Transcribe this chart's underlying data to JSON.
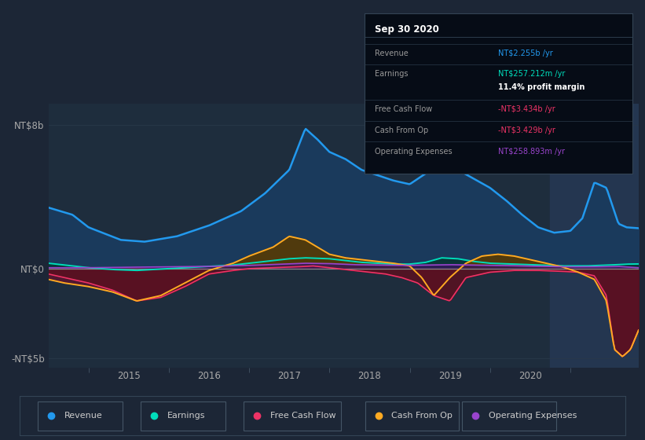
{
  "background_color": "#1c2636",
  "plot_bg_color": "#1e2d3d",
  "highlight_bg": "#243650",
  "colors": {
    "revenue_line": "#2299ee",
    "revenue_fill": "#1a3a5c",
    "earnings_line": "#00ddbb",
    "earnings_fill": "#0a3535",
    "free_cash_line": "#ee3366",
    "free_cash_fill": "#5a1020",
    "cash_from_op_line": "#ffaa22",
    "cash_from_op_fill_pos": "#5a3a00",
    "cash_from_op_fill_neg": "#5a1530",
    "op_exp_line": "#9944cc",
    "op_exp_fill": "#3a1560",
    "zero_line": "#888888",
    "grid_line": "#2a3a4a"
  },
  "legend": [
    {
      "label": "Revenue",
      "color": "#2299ee"
    },
    {
      "label": "Earnings",
      "color": "#00ddbb"
    },
    {
      "label": "Free Cash Flow",
      "color": "#ee3366"
    },
    {
      "label": "Cash From Op",
      "color": "#ffaa22"
    },
    {
      "label": "Operating Expenses",
      "color": "#9944cc"
    }
  ],
  "info_box": {
    "title": "Sep 30 2020",
    "rows": [
      {
        "label": "Revenue",
        "value": "NT$2.255b /yr",
        "color": "#2299ee"
      },
      {
        "label": "Earnings",
        "value": "NT$257.212m /yr",
        "color": "#00ddbb"
      },
      {
        "label": "",
        "value": "11.4% profit margin",
        "color": "#ffffff"
      },
      {
        "label": "Free Cash Flow",
        "value": "-NT$3.434b /yr",
        "color": "#ee3366"
      },
      {
        "label": "Cash From Op",
        "value": "-NT$3.429b /yr",
        "color": "#ee3366"
      },
      {
        "label": "Operating Expenses",
        "value": "NT$258.893m /yr",
        "color": "#9944cc"
      }
    ]
  }
}
